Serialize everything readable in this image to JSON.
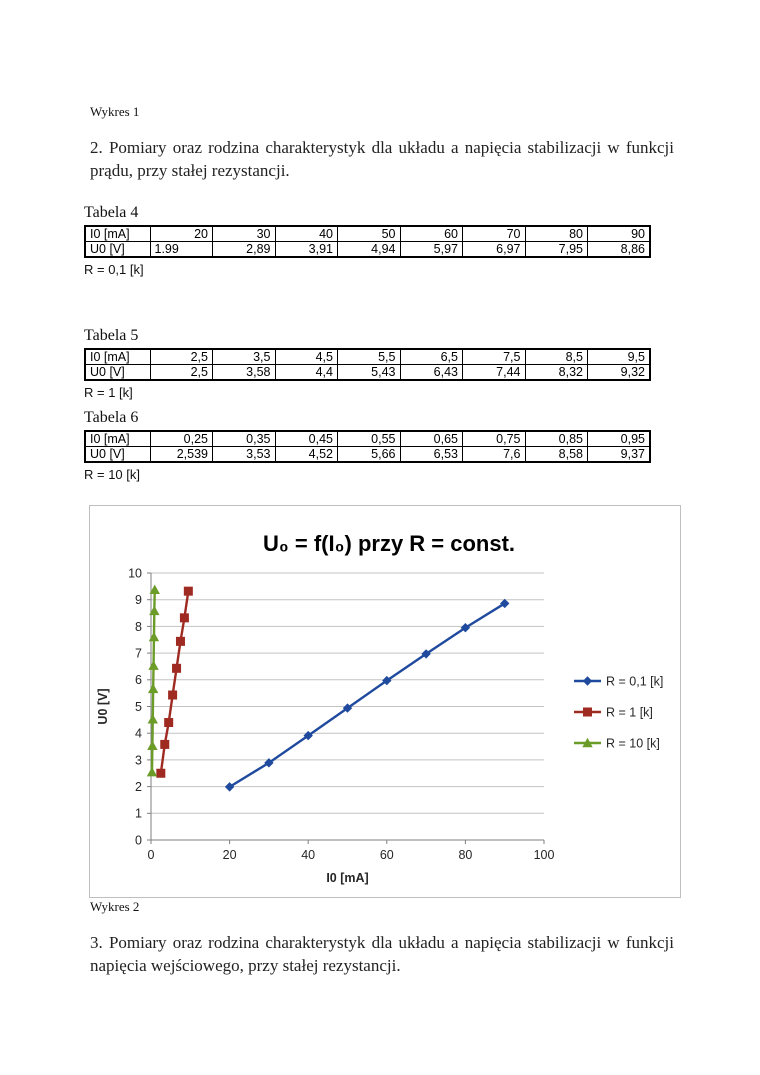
{
  "page": {
    "wykres1_label": "Wykres 1",
    "section2_text": "2. Pomiary oraz rodzina charakterystyk dla układu a napięcia stabilizacji w funkcji prądu, przy stałej rezystancji.",
    "wykres2_label": "Wykres 2",
    "section3_text": "3. Pomiary oraz rodzina charakterystyk dla układu a napięcia stabilizacji w funkcji napięcia wejściowego, przy stałej rezystancji."
  },
  "tables": [
    {
      "caption": "Tabela 4",
      "note": "R = 0,1 [k]",
      "rows": [
        {
          "header": "I0 [mA]",
          "values": [
            "20",
            "30",
            "40",
            "50",
            "60",
            "70",
            "80",
            "90"
          ]
        },
        {
          "header": "U0 [V]",
          "values": [
            "1.99",
            "2,89",
            "3,91",
            "4,94",
            "5,97",
            "6,97",
            "7,95",
            "8,86"
          ]
        }
      ]
    },
    {
      "caption": "Tabela 5",
      "note": "R = 1 [k]",
      "rows": [
        {
          "header": "I0 [mA]",
          "values": [
            "2,5",
            "3,5",
            "4,5",
            "5,5",
            "6,5",
            "7,5",
            "8,5",
            "9,5"
          ]
        },
        {
          "header": "U0 [V]",
          "values": [
            "2,5",
            "3,58",
            "4,4",
            "5,43",
            "6,43",
            "7,44",
            "8,32",
            "9,32"
          ]
        }
      ]
    },
    {
      "caption": "Tabela 6",
      "note": "R = 10 [k]",
      "rows": [
        {
          "header": "I0 [mA]",
          "values": [
            "0,25",
            "0,35",
            "0,45",
            "0,55",
            "0,65",
            "0,75",
            "0,85",
            "0,95"
          ]
        },
        {
          "header": "U0 [V]",
          "values": [
            "2,539",
            "3,53",
            "4,52",
            "5,66",
            "6,53",
            "7,6",
            "8,58",
            "9,37"
          ]
        }
      ]
    }
  ],
  "chart_data": {
    "type": "line",
    "title": "U₀ = f(I₀) przy R = const.",
    "xlabel": "I0 [mA]",
    "ylabel": "U0 [V]",
    "xlim": [
      0,
      100
    ],
    "ylim": [
      0,
      10
    ],
    "x_ticks": [
      0,
      20,
      40,
      60,
      80,
      100
    ],
    "y_ticks": [
      0,
      1,
      2,
      3,
      4,
      5,
      6,
      7,
      8,
      9,
      10
    ],
    "grid": "horizontal",
    "legend_position": "right",
    "colors": {
      "grid": "#c3c3c3",
      "axis": "#7f7f7f",
      "border": "#bfbfbf",
      "text": "#262626"
    },
    "series": [
      {
        "name": "R = 0,1 [k]",
        "color": "#1f4a9e",
        "marker": "diamond",
        "x": [
          20,
          30,
          40,
          50,
          60,
          70,
          80,
          90
        ],
        "y": [
          1.99,
          2.89,
          3.91,
          4.94,
          5.97,
          6.97,
          7.95,
          8.86
        ]
      },
      {
        "name": "R = 1 [k]",
        "color": "#9e2a21",
        "marker": "square",
        "x": [
          2.5,
          3.5,
          4.5,
          5.5,
          6.5,
          7.5,
          8.5,
          9.5
        ],
        "y": [
          2.5,
          3.58,
          4.4,
          5.43,
          6.43,
          7.44,
          8.32,
          9.32
        ]
      },
      {
        "name": "R = 10 [k]",
        "color": "#6b9c28",
        "marker": "triangle",
        "x": [
          0.25,
          0.35,
          0.45,
          0.55,
          0.65,
          0.75,
          0.85,
          0.95
        ],
        "y": [
          2.539,
          3.53,
          4.52,
          5.66,
          6.53,
          7.6,
          8.58,
          9.37
        ]
      }
    ]
  }
}
